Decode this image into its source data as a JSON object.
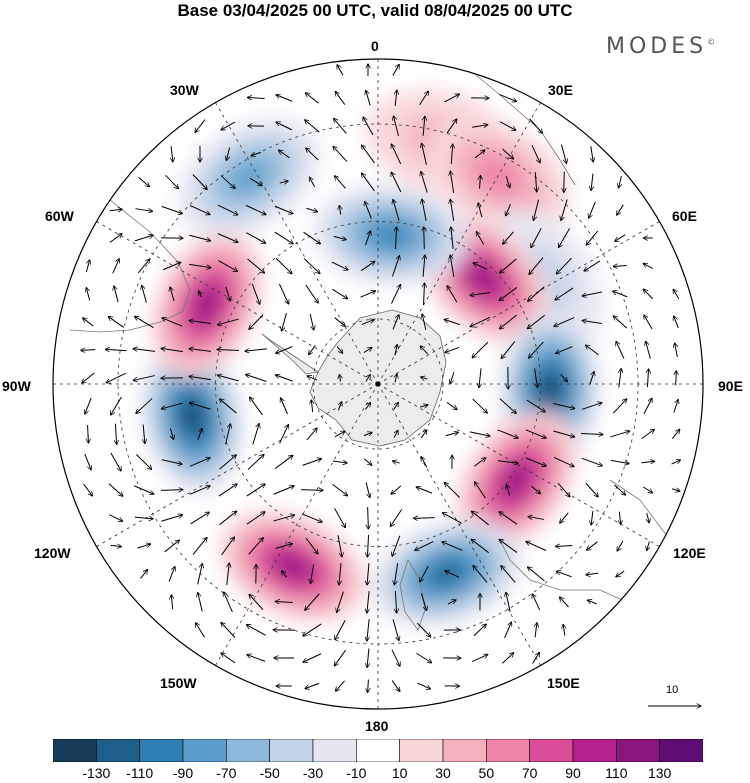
{
  "title": "Base 03/04/2025 00 UTC, valid 08/04/2025 00 UTC",
  "logo": "MODES",
  "logo_mark": "©",
  "longitude_labels": {
    "lon_0": "0",
    "lon_30e": "30E",
    "lon_60e": "60E",
    "lon_90e": "90E",
    "lon_120e": "120E",
    "lon_150e": "150E",
    "lon_180": "180",
    "lon_150w": "150W",
    "lon_120w": "120W",
    "lon_90w": "90W",
    "lon_60w": "60W",
    "lon_30w": "30W"
  },
  "reference_vector": {
    "label": "10"
  },
  "colorbar": {
    "ticks": [
      "-130",
      "-110",
      "-90",
      "-70",
      "-50",
      "-30",
      "-10",
      "10",
      "30",
      "50",
      "70",
      "90",
      "110",
      "130"
    ],
    "colors": [
      "#163c5a",
      "#1f5f8b",
      "#2f7fb5",
      "#5b9ecb",
      "#8fb9da",
      "#c2d3e8",
      "#e5e6f2",
      "#ffffff",
      "#f9d7d9",
      "#f4b0bc",
      "#ee84a8",
      "#db4c98",
      "#b4208d",
      "#8a157f",
      "#5e0d72"
    ]
  },
  "anomalies": [
    {
      "lon": 15,
      "r": 0.77,
      "value": 40
    },
    {
      "lon": 30,
      "r": 0.74,
      "value": 65
    },
    {
      "lon": 58,
      "r": 0.6,
      "value": -40
    },
    {
      "lon": 45,
      "r": 0.46,
      "value": 120
    },
    {
      "lon": 92,
      "r": 0.53,
      "value": -130
    },
    {
      "lon": 125,
      "r": 0.52,
      "value": 125
    },
    {
      "lon": 160,
      "r": 0.62,
      "value": -110
    },
    {
      "lon": 205,
      "r": 0.62,
      "value": 125
    },
    {
      "lon": 260,
      "r": 0.58,
      "value": -135
    },
    {
      "lon": 295,
      "r": 0.58,
      "value": 125
    },
    {
      "lon": 328,
      "r": 0.75,
      "value": -85
    },
    {
      "lon": 5,
      "r": 0.46,
      "value": -90
    }
  ]
}
